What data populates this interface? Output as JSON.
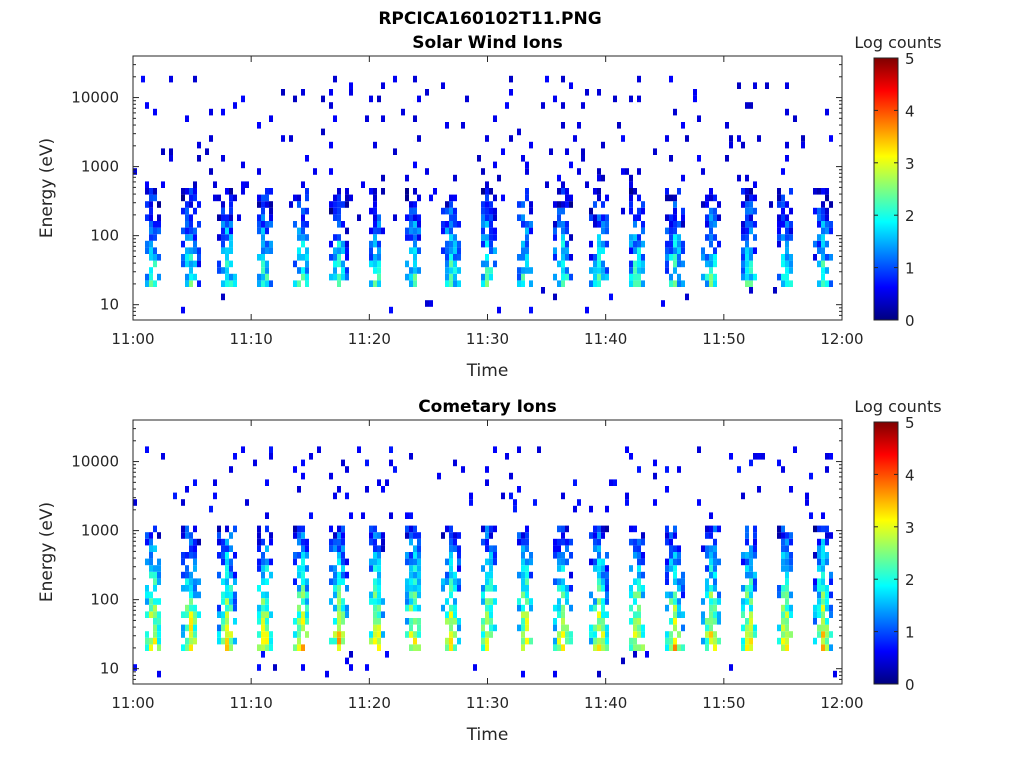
{
  "figure": {
    "title": "RPCICA160102T11.PNG"
  },
  "colorscale": {
    "name": "jet",
    "stops": [
      "#00007f",
      "#0000ff",
      "#007fff",
      "#00ffff",
      "#7fff7f",
      "#ffff00",
      "#ff7f00",
      "#ff0000",
      "#7f0000"
    ]
  },
  "chart_data": [
    {
      "type": "heatmap",
      "title": "Solar Wind Ions",
      "xlabel": "Time",
      "ylabel": "Energy (eV)",
      "x_ticks": [
        "11:00",
        "11:10",
        "11:20",
        "11:30",
        "11:40",
        "11:50",
        "12:00"
      ],
      "xlim_minutes": [
        0,
        60
      ],
      "y_scale": "log",
      "ylim": [
        6,
        40000
      ],
      "y_ticks": [
        10,
        100,
        1000,
        10000
      ],
      "y_tick_labels": [
        "10",
        "100",
        "1000",
        "10000"
      ],
      "colorbar": {
        "label": "Log counts",
        "range": [
          0,
          5
        ],
        "ticks": [
          "0",
          "1",
          "2",
          "3",
          "4",
          "5"
        ]
      },
      "sweep_period_minutes": 3.15,
      "sweep_start_minutes": 1.7,
      "sweep_count": 19,
      "band_energy_range_eV": [
        20,
        450
      ],
      "band_peak_log_counts": 2.3,
      "sparse_energy_range_eV": [
        150,
        20000
      ],
      "sparse_level_log_counts": 0.3
    },
    {
      "type": "heatmap",
      "title": "Cometary Ions",
      "xlabel": "Time",
      "ylabel": "Energy (eV)",
      "x_ticks": [
        "11:00",
        "11:10",
        "11:20",
        "11:30",
        "11:40",
        "11:50",
        "12:00"
      ],
      "xlim_minutes": [
        0,
        60
      ],
      "y_scale": "log",
      "ylim": [
        6,
        40000
      ],
      "y_ticks": [
        10,
        100,
        1000,
        10000
      ],
      "y_tick_labels": [
        "10",
        "100",
        "1000",
        "10000"
      ],
      "colorbar": {
        "label": "Log counts",
        "range": [
          0,
          5
        ],
        "ticks": [
          "0",
          "1",
          "2",
          "3",
          "4",
          "5"
        ]
      },
      "sweep_period_minutes": 3.15,
      "sweep_start_minutes": 1.7,
      "sweep_count": 19,
      "band_energy_range_eV": [
        20,
        1200
      ],
      "band_peak_log_counts": 3.4,
      "sparse_energy_range_eV": [
        1500,
        18000
      ],
      "sparse_level_log_counts": 0.4
    }
  ]
}
